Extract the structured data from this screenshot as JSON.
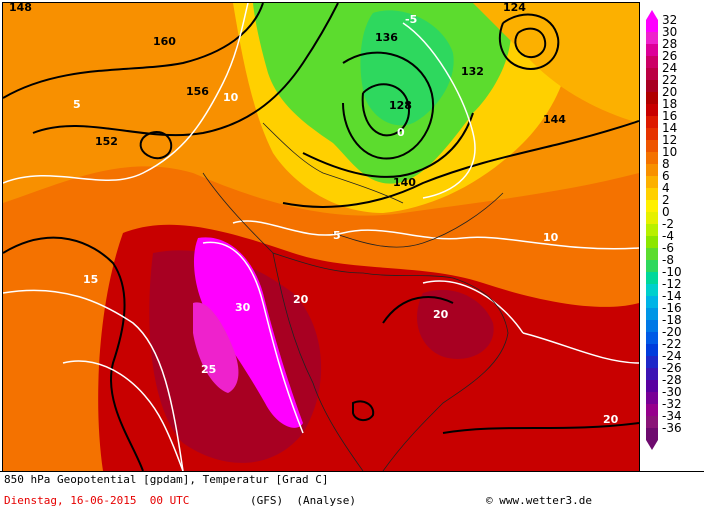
{
  "map": {
    "legend_values": [
      "32",
      "30",
      "28",
      "26",
      "24",
      "22",
      "20",
      "18",
      "16",
      "14",
      "12",
      "10",
      "8",
      "6",
      "4",
      "2",
      "0",
      "-2",
      "-4",
      "-6",
      "-8",
      "-10",
      "-12",
      "-14",
      "-16",
      "-18",
      "-20",
      "-22",
      "-24",
      "-26",
      "-28",
      "-30",
      "-32",
      "-34",
      "-36"
    ],
    "legend_colors": [
      "#ff00ff",
      "#ee22cc",
      "#dd0099",
      "#cc0066",
      "#bb0044",
      "#a80022",
      "#b00000",
      "#c80000",
      "#dd1a00",
      "#e63300",
      "#ee5500",
      "#f47200",
      "#f89000",
      "#fcb000",
      "#ffd000",
      "#fff000",
      "#e6f000",
      "#b8f000",
      "#8ce600",
      "#5cdc2e",
      "#2ed85e",
      "#00d89a",
      "#00d0cc",
      "#00b4e6",
      "#0096e6",
      "#0078e6",
      "#005ae6",
      "#003cdc",
      "#1e28c8",
      "#3c14b4",
      "#5a00a0",
      "#780096",
      "#96008c",
      "#8a1478",
      "#6e0a6e"
    ],
    "geopotential_labels": [
      "148",
      "160",
      "156",
      "152",
      "144",
      "136",
      "140",
      "132",
      "128",
      "124"
    ],
    "temperature_labels": [
      "5",
      "10",
      "15",
      "20",
      "25",
      "30",
      "0",
      "-5"
    ],
    "colors": {
      "ocean_warm": "#d94a0a",
      "mid": "#f47200",
      "light": "#f89000",
      "yellow": "#ffd000",
      "green": "#5cdc2e",
      "hot": "#b00000",
      "magenta": "#ff00ff"
    }
  },
  "footer": {
    "title": "850 hPa Geopotential [gpdam], Temperatur [Grad C]",
    "date": "Dienstag, 16-06-2015  00 UTC",
    "model": "(GFS)  (Analyse)",
    "credit": "© www.wetter3.de"
  }
}
